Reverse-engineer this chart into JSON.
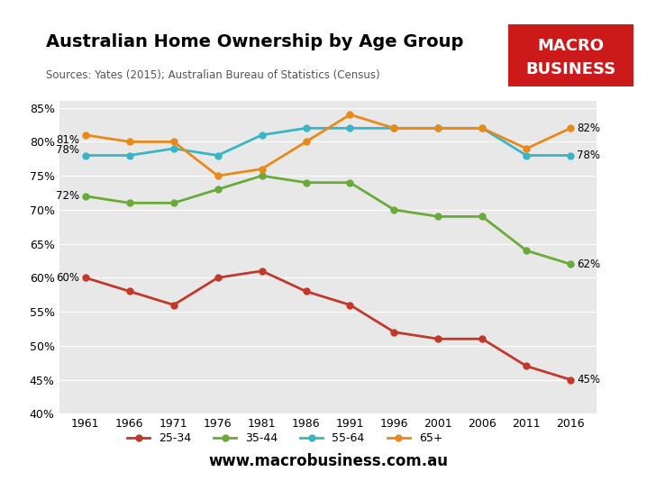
{
  "title": "Australian Home Ownership by Age Group",
  "subtitle": "Sources: Yates (2015); Australian Bureau of Statistics (Census)",
  "years": [
    1961,
    1966,
    1971,
    1976,
    1981,
    1986,
    1991,
    1996,
    2001,
    2006,
    2011,
    2016
  ],
  "series": {
    "25-34": [
      60,
      58,
      56,
      60,
      61,
      58,
      56,
      52,
      51,
      51,
      47,
      45
    ],
    "35-44": [
      72,
      71,
      71,
      73,
      75,
      74,
      74,
      70,
      69,
      69,
      64,
      62
    ],
    "55-64": [
      78,
      78,
      79,
      78,
      81,
      82,
      82,
      82,
      82,
      82,
      78,
      78
    ],
    "65+": [
      81,
      80,
      80,
      75,
      76,
      80,
      84,
      82,
      82,
      82,
      79,
      82
    ]
  },
  "colors": {
    "25-34": "#c0392b",
    "35-44": "#6aaa3a",
    "55-64": "#3ab5c6",
    "65+": "#e8891a"
  },
  "start_labels": {
    "25-34": "60%",
    "35-44": "72%",
    "55-64": "78%",
    "65+": "81%"
  },
  "end_labels": {
    "25-34": "45%",
    "35-44": "62%",
    "55-64": "78%",
    "65+": "82%"
  },
  "ylim": [
    40,
    86
  ],
  "yticks": [
    40,
    45,
    50,
    55,
    60,
    65,
    70,
    75,
    80,
    85
  ],
  "website": "www.macrobusiness.com.au",
  "logo_bg_color": "#cc1a1a",
  "logo_text1": "MACRO",
  "logo_text2": "BUSINESS",
  "plot_bg_color": "#e8e8e8",
  "fig_bg_color": "#ffffff"
}
